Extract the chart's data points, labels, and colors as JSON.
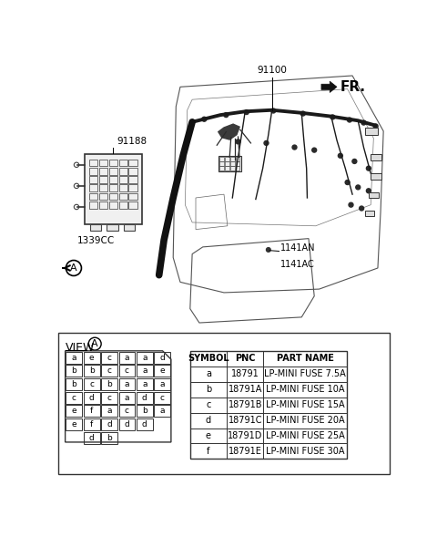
{
  "bg_color": "#ffffff",
  "part_number_top": "91100",
  "part_number_left": "91188",
  "part_number_cc": "1339CC",
  "part_number_an": "1141AN",
  "part_number_ac": "1141AC",
  "fr_label": "FR.",
  "circle_label_bottom": "A",
  "table_headers": [
    "SYMBOL",
    "PNC",
    "PART NAME"
  ],
  "table_rows": [
    [
      "a",
      "18791",
      "LP-MINI FUSE 7.5A"
    ],
    [
      "b",
      "18791A",
      "LP-MINI FUSE 10A"
    ],
    [
      "c",
      "18791B",
      "LP-MINI FUSE 15A"
    ],
    [
      "d",
      "18791C",
      "LP-MINI FUSE 20A"
    ],
    [
      "e",
      "18791D",
      "LP-MINI FUSE 25A"
    ],
    [
      "f",
      "18791E",
      "LP-MINI FUSE 30A"
    ]
  ],
  "fuse_grid": [
    [
      "a",
      "e",
      "c",
      "a",
      "a",
      "d"
    ],
    [
      "b",
      "b",
      "c",
      "c",
      "a",
      "e"
    ],
    [
      "b",
      "c",
      "b",
      "a",
      "a",
      "a"
    ],
    [
      "c",
      "d",
      "c",
      "a",
      "d",
      "c"
    ],
    [
      "e",
      "f",
      "a",
      "c",
      "b",
      "a"
    ],
    [
      "e",
      "f",
      "d",
      "d",
      "d",
      ""
    ]
  ],
  "fuse_bottom": [
    "d",
    "b"
  ],
  "line_color": "#000000",
  "text_color": "#000000"
}
